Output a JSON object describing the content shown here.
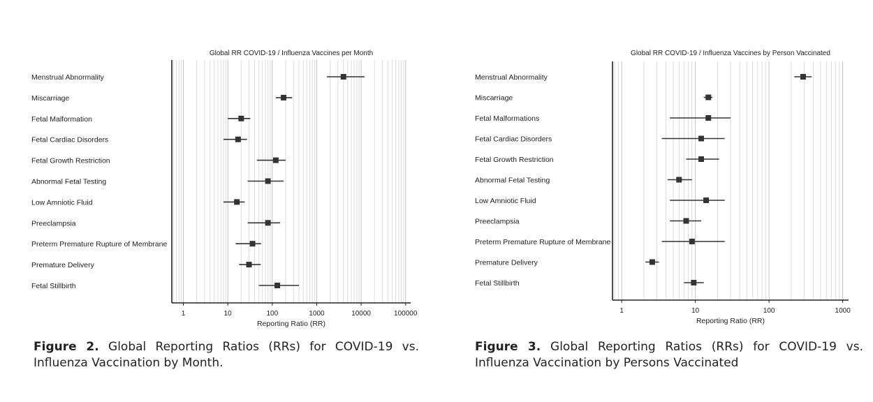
{
  "figures": [
    {
      "caption_label": "Figure 2.",
      "caption_text": "Global Reporting Ratios (RRs) for COVID-19 vs. Influenza Vaccination by Month.",
      "chart_data": {
        "type": "scatter",
        "subtype": "forest-plot",
        "title": "Global RR COVID-19 / Influenza Vaccines per Month",
        "xlabel": "Reporting Ratio (RR)",
        "x_scale": "log",
        "xlim": [
          0.55,
          130000
        ],
        "xticks": [
          1,
          10,
          100,
          1000,
          10000,
          100000
        ],
        "xtick_labels": [
          "1",
          "10",
          "100",
          "1000",
          "10000",
          "100000"
        ],
        "grid": true,
        "categories": [
          "Menstrual Abnormality",
          "Miscarriage",
          "Fetal Malformation",
          "Fetal Cardiac Disorders",
          "Fetal Growth Restriction",
          "Abnormal Fetal Testing",
          "Low Amniotic Fluid",
          "Preeclampsia",
          "Preterm Premature Rupture of Membrane",
          "Premature Delivery",
          "Fetal Stillbirth"
        ],
        "estimates": [
          4000,
          180,
          20,
          17,
          120,
          80,
          16,
          80,
          36,
          30,
          130
        ],
        "lower": [
          1700,
          120,
          10,
          8,
          45,
          28,
          8,
          28,
          15,
          18,
          50
        ],
        "upper": [
          12000,
          280,
          32,
          27,
          200,
          180,
          24,
          150,
          56,
          55,
          400
        ]
      }
    },
    {
      "caption_label": "Figure 3.",
      "caption_text": "Global Reporting Ratios (RRs) for COVID-19 vs. Influenza Vaccination by Persons Vaccinated",
      "chart_data": {
        "type": "scatter",
        "subtype": "forest-plot",
        "title": "Global RR COVID-19 / Influenza Vaccines by Person Vaccinated",
        "xlabel": "Reporting Ratio (RR)",
        "x_scale": "log",
        "xlim": [
          0.75,
          1200
        ],
        "xticks": [
          1,
          10,
          100,
          1000
        ],
        "xtick_labels": [
          "1",
          "10",
          "100",
          "1000"
        ],
        "grid": true,
        "categories": [
          "Menstrual Abnormality",
          "Miscarriage",
          "Fetal Malformations",
          "Fetal Cardiac Disorders",
          "Fetal Growth Restriction",
          "Abnormal Fetal Testing",
          "Low Amniotic Fluid",
          "Preeclampsia",
          "Preterm Premature Rupture of Membrane",
          "Premature Delivery",
          "Fetal Stillbirth"
        ],
        "estimates": [
          290,
          15,
          15,
          12,
          12,
          6,
          14,
          7.5,
          9,
          2.6,
          9.5
        ],
        "lower": [
          220,
          13,
          4.5,
          3.5,
          7.5,
          4.2,
          4.5,
          4.5,
          3.5,
          2.1,
          7
        ],
        "upper": [
          380,
          17,
          30,
          25,
          21,
          9,
          25,
          12,
          25,
          3.2,
          13
        ]
      }
    }
  ]
}
